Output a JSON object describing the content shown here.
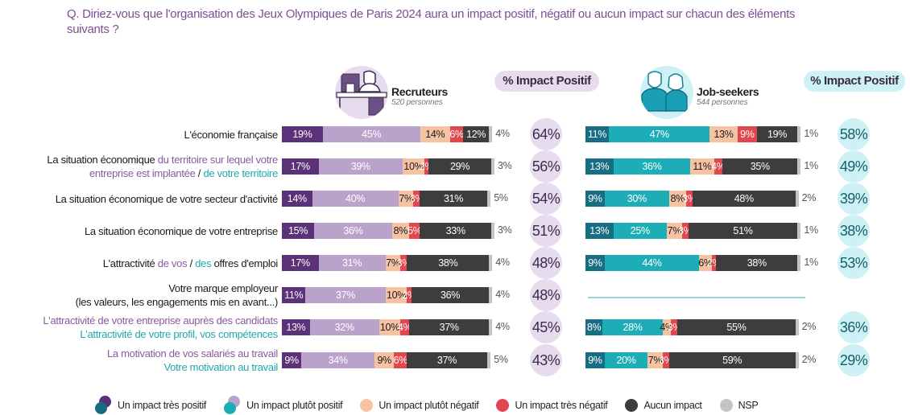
{
  "question": "Q. Diriez-vous que l'organisation des Jeux Olympiques de Paris 2024 aura un impact positif, négatif ou aucun impact sur chacun des éléments suivants ?",
  "groups": {
    "recruiters": {
      "title": "Recruteurs",
      "subtitle": "520 personnes",
      "icon": "recruiter-desk-icon",
      "pill": "% Impact Positif"
    },
    "jobseekers": {
      "title": "Job-seekers",
      "subtitle": "544 personnes",
      "icon": "job-seekers-icon",
      "pill": "% Impact Positif"
    }
  },
  "colors": {
    "rec_tres_positif": "#5b3278",
    "rec_plutot_positif": "#b9a3cb",
    "js_tres_positif": "#176e84",
    "js_plutot_positif": "#1cadb7",
    "plutot_negatif": "#f6c3a2",
    "tres_negatif": "#e2474f",
    "aucun": "#3d3d3d",
    "nsp": "#c4c4c4"
  },
  "rows": [
    {
      "label": [
        {
          "t": "L'économie française",
          "c": ""
        }
      ]
    },
    {
      "label": [
        {
          "t": "La situation économique ",
          "c": ""
        },
        {
          "t": "du territoire sur lequel votre",
          "c": "purple"
        },
        {
          "br": true
        },
        {
          "t": "entreprise est implantée",
          "c": "purple"
        },
        {
          "t": " / ",
          "c": ""
        },
        {
          "t": "de votre territoire",
          "c": "teal"
        }
      ]
    },
    {
      "label": [
        {
          "t": "La situation économique de votre secteur d'activité",
          "c": ""
        }
      ]
    },
    {
      "label": [
        {
          "t": "La situation économique de votre entreprise",
          "c": ""
        }
      ]
    },
    {
      "label": [
        {
          "t": "L'attractivité ",
          "c": ""
        },
        {
          "t": "de vos",
          "c": "purple"
        },
        {
          "t": " / ",
          "c": ""
        },
        {
          "t": "des",
          "c": "teal"
        },
        {
          "t": " offres d'emploi",
          "c": ""
        }
      ]
    },
    {
      "label": [
        {
          "t": "Votre marque employeur",
          "c": ""
        },
        {
          "br": true
        },
        {
          "t": "(les valeurs, les engagements mis en avant...)",
          "c": ""
        }
      ]
    },
    {
      "label": [
        {
          "t": "L'attractivité de votre entreprise auprès des candidats",
          "c": "purple"
        },
        {
          "br": true
        },
        {
          "t": "L'attractivité de votre profil, vos compétences",
          "c": "teal"
        }
      ]
    },
    {
      "label": [
        {
          "t": "La motivation de vos salariés au travail",
          "c": "purple"
        },
        {
          "br": true
        },
        {
          "t": "Votre motivation au travail",
          "c": "teal"
        }
      ]
    }
  ],
  "legend": [
    {
      "label": "Un impact très positif",
      "dual": true
    },
    {
      "label": "Un impact plutôt positif",
      "dual": true
    },
    {
      "label": "Un impact plutôt négatif"
    },
    {
      "label": "Un impact très négatif"
    },
    {
      "label": "Aucun impact"
    },
    {
      "label": "NSP"
    }
  ],
  "chart_data": {
    "type": "bar",
    "orientation": "horizontal-stacked-100",
    "title": "Q. Diriez-vous que l'organisation des Jeux Olympiques de Paris 2024 aura un impact positif, négatif ou aucun impact sur chacun des éléments suivants ?",
    "categories": [
      "L'économie française",
      "La situation économique du territoire sur lequel votre entreprise est implantée / de votre territoire",
      "La situation économique de votre secteur d'activité",
      "La situation économique de votre entreprise",
      "L'attractivité de vos / des offres d'emploi",
      "Votre marque employeur (les valeurs, les engagements mis en avant...)",
      "L'attractivité de votre entreprise auprès des candidats / L'attractivité de votre profil, vos compétences",
      "La motivation de vos salariés au travail / Votre motivation au travail"
    ],
    "segments": [
      "Un impact très positif",
      "Un impact plutôt positif",
      "Un impact plutôt négatif",
      "Un impact très négatif",
      "Aucun impact",
      "NSP"
    ],
    "series": [
      {
        "name": "Recruteurs (520 personnes)",
        "values": [
          [
            19,
            45,
            14,
            6,
            12,
            4
          ],
          [
            17,
            39,
            10,
            2,
            29,
            3
          ],
          [
            14,
            40,
            7,
            3,
            31,
            5
          ],
          [
            15,
            36,
            8,
            5,
            33,
            3
          ],
          [
            17,
            31,
            7,
            3,
            38,
            4
          ],
          [
            11,
            37,
            10,
            2,
            36,
            4
          ],
          [
            13,
            32,
            10,
            4,
            37,
            4
          ],
          [
            9,
            34,
            9,
            6,
            37,
            5
          ]
        ],
        "impact_positif": [
          64,
          56,
          54,
          51,
          48,
          48,
          45,
          43
        ]
      },
      {
        "name": "Job-seekers (544 personnes)",
        "values": [
          [
            11,
            47,
            13,
            9,
            19,
            1
          ],
          [
            13,
            36,
            11,
            4,
            35,
            1
          ],
          [
            9,
            30,
            8,
            3,
            48,
            2
          ],
          [
            13,
            25,
            7,
            3,
            51,
            1
          ],
          [
            9,
            44,
            6,
            2,
            38,
            1
          ],
          null,
          [
            8,
            28,
            4,
            3,
            55,
            2
          ],
          [
            9,
            20,
            7,
            3,
            59,
            2
          ]
        ],
        "impact_positif": [
          58,
          49,
          39,
          38,
          53,
          null,
          36,
          29
        ]
      }
    ],
    "unit": "%",
    "xlim": [
      0,
      100
    ],
    "legend_position": "bottom"
  }
}
